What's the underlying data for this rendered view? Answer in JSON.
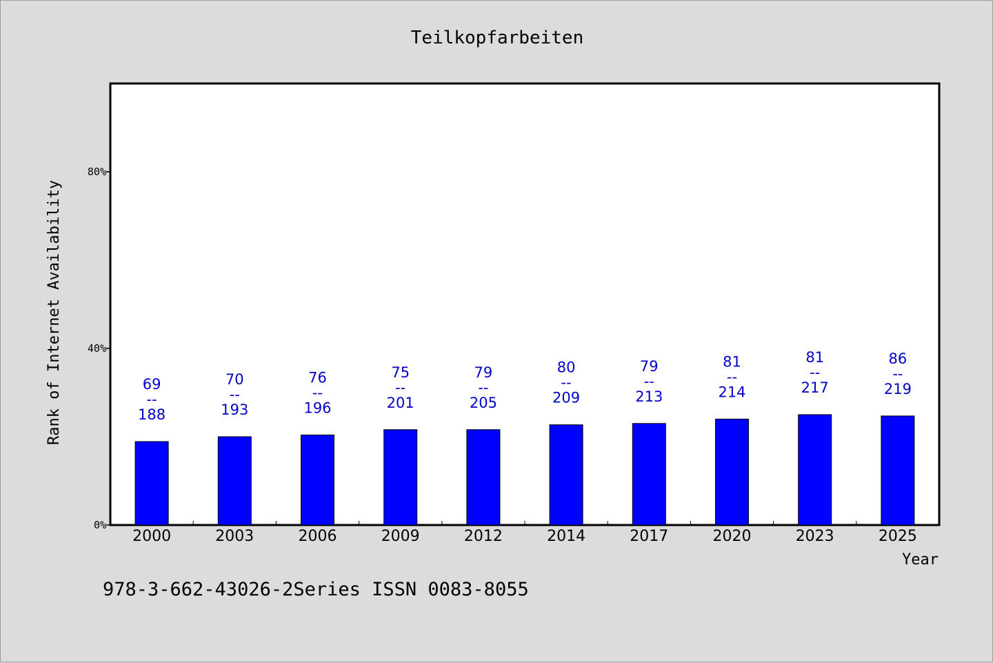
{
  "chart_data": {
    "type": "bar",
    "title": "Teilkopfarbeiten",
    "xlabel": "Year",
    "ylabel": "Rank of Internet Availability",
    "ylim": [
      0,
      100
    ],
    "yticks": [
      0,
      40,
      80
    ],
    "ytick_labels": [
      "0%",
      "40%",
      "80%"
    ],
    "categories": [
      "2000",
      "2003",
      "2006",
      "2009",
      "2012",
      "2014",
      "2017",
      "2020",
      "2023",
      "2025"
    ],
    "values": [
      18.9,
      20.0,
      20.4,
      21.6,
      21.6,
      22.7,
      23.0,
      24.0,
      25.0,
      24.7
    ],
    "label_top": [
      "69",
      "70",
      "76",
      "75",
      "79",
      "80",
      "79",
      "81",
      "81",
      "86"
    ],
    "label_bottom": [
      "188",
      "193",
      "196",
      "201",
      "205",
      "209",
      "213",
      "214",
      "217",
      "219"
    ],
    "label_separator": "--",
    "bar_color": "#0000ff",
    "label_color": "#0000cc",
    "grid": false
  },
  "footer": {
    "text": "978-3-662-43026-2Series ISSN 0083-8055"
  }
}
